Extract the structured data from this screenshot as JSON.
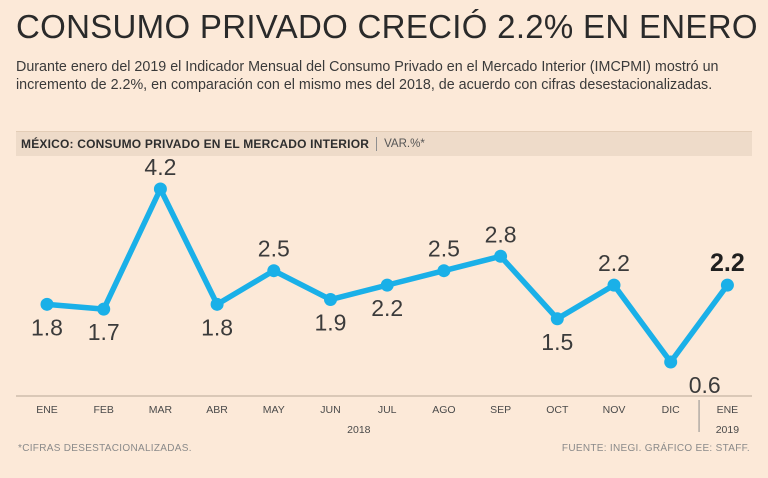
{
  "header": {
    "headline": "CONSUMO PRIVADO CRECIÓ 2.2% EN ENERO",
    "deck": "Durante enero del 2019 el Indicador Mensual del Consumo Privado en el Mercado Interior (IMCPMI) mostró un incremento de 2.2%, en comparación con el mismo mes del 2018, de acuerdo con cifras desestacionalizadas."
  },
  "chart_header": {
    "title": "MÉXICO: CONSUMO PRIVADO EN EL MERCADO INTERIOR",
    "unit": "VAR.%*"
  },
  "chart_data": {
    "type": "line",
    "categories": [
      "ENE",
      "FEB",
      "MAR",
      "ABR",
      "MAY",
      "JUN",
      "JUL",
      "AGO",
      "SEP",
      "OCT",
      "NOV",
      "DIC",
      "ENE"
    ],
    "values": [
      1.8,
      1.7,
      4.2,
      1.8,
      2.5,
      1.9,
      2.2,
      2.5,
      2.8,
      1.5,
      2.2,
      0.6,
      2.2
    ],
    "value_labels": [
      "1.8",
      "1.7",
      "4.2",
      "1.8",
      "2.5",
      "1.9",
      "2.2",
      "2.5",
      "2.8",
      "1.5",
      "2.2",
      "0.6",
      "2.2"
    ],
    "label_positions": [
      "below",
      "below",
      "above",
      "below",
      "above",
      "below",
      "below",
      "above",
      "above",
      "below",
      "above",
      "below",
      "above"
    ],
    "highlight_last": true,
    "year_labels": [
      {
        "text": "2018",
        "from": 0,
        "to": 11
      },
      {
        "text": "2019",
        "from": 12,
        "to": 12
      }
    ],
    "ylim": [
      0,
      4.6
    ],
    "line_color": "#1ab0e8",
    "grid": false
  },
  "footer": {
    "note": "*CIFRAS DESESTACIONALIZADAS.",
    "source": "FUENTE: INEGI. GRÁFICO EE: STAFF."
  }
}
